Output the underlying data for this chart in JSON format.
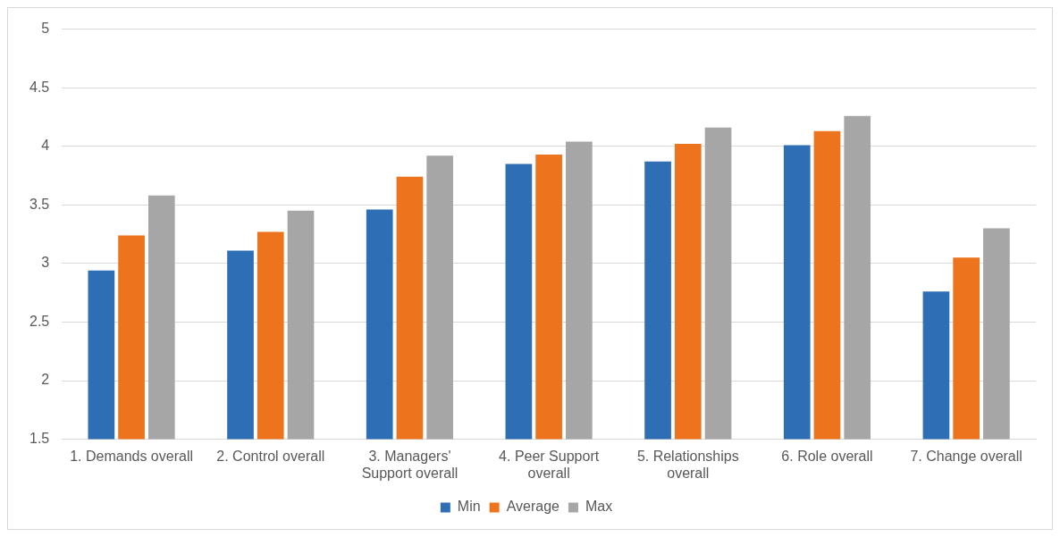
{
  "chart_data": {
    "type": "bar",
    "categories": [
      "1. Demands overall",
      "2. Control overall",
      "3. Managers' Support overall",
      "4. Peer Support overall",
      "5. Relationships overall",
      "6. Role overall",
      "7. Change overall"
    ],
    "series": [
      {
        "name": "Min",
        "color": "#2e6eb5",
        "values": [
          2.94,
          3.11,
          3.46,
          3.85,
          3.87,
          4.01,
          2.76
        ]
      },
      {
        "name": "Average",
        "color": "#ed741c",
        "values": [
          3.24,
          3.27,
          3.74,
          3.93,
          4.02,
          4.13,
          3.05
        ]
      },
      {
        "name": "Max",
        "color": "#a6a6a6",
        "values": [
          3.58,
          3.45,
          3.92,
          4.04,
          4.16,
          4.26,
          3.3
        ]
      }
    ],
    "ylim": [
      1.5,
      5
    ],
    "yticks": [
      1.5,
      2,
      2.5,
      3,
      3.5,
      4,
      4.5,
      5
    ],
    "grid": "y",
    "legend": "bottom"
  }
}
